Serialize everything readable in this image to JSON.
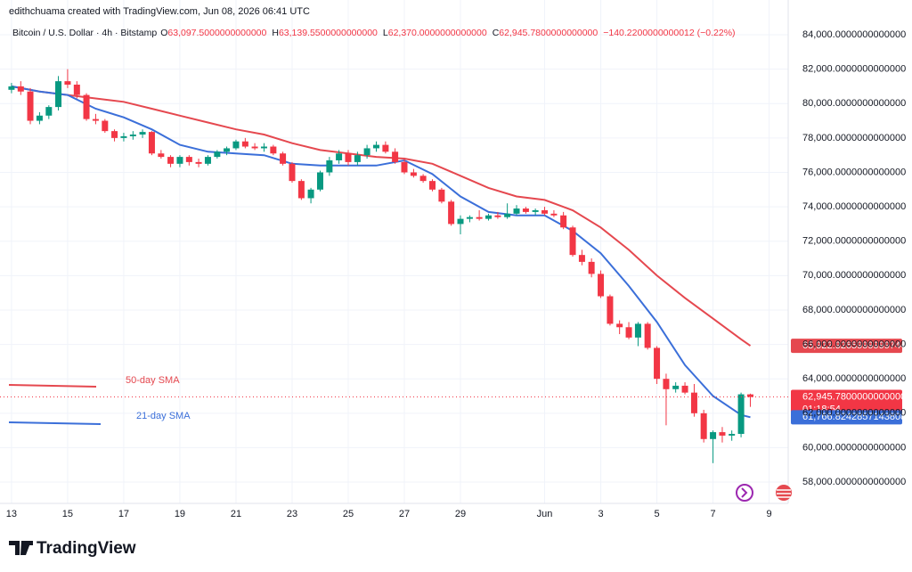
{
  "attribution": "edithchuama created with TradingView.com, Jun 08, 2026 06:41 UTC",
  "chart_data": {
    "type": "candlestick",
    "title": "Bitcoin / U.S. Dollar · 4h · Bitstamp",
    "ohlc_legend": [
      {
        "label": "O",
        "value": "63,097.5000000000000"
      },
      {
        "label": "H",
        "value": "63,139.5500000000000"
      },
      {
        "label": "L",
        "value": "62,370.0000000000000"
      },
      {
        "label": "C",
        "value": "62,945.7800000000000"
      }
    ],
    "change": "−140.2200000000012 (−0.22%)",
    "x": [
      0,
      0.33,
      0.67,
      1,
      1.33,
      1.67,
      2,
      2.33,
      2.67,
      3,
      3.33,
      3.67,
      4,
      4.33,
      4.67,
      5,
      5.33,
      5.67,
      6,
      6.33,
      6.67,
      7,
      7.33,
      7.67,
      8,
      8.33,
      8.67,
      9,
      9.33,
      9.67,
      10,
      10.33,
      10.67,
      11,
      11.33,
      11.67,
      12,
      12.33,
      12.67,
      13,
      13.33,
      13.67,
      14,
      14.33,
      14.67,
      15,
      15.33,
      15.67,
      16,
      16.33,
      16.67,
      17,
      17.33,
      17.67,
      18,
      18.33,
      18.67,
      19,
      19.33,
      19.67,
      20,
      20.33,
      20.67,
      21,
      21.33,
      21.67,
      22,
      22.33,
      22.67,
      23,
      23.33,
      23.67,
      24,
      24.33,
      24.67,
      25,
      25.33,
      25.67,
      26,
      26.33
    ],
    "open": [
      80800,
      81000,
      80700,
      79000,
      79300,
      79800,
      81300,
      81100,
      80500,
      79100,
      79000,
      78400,
      78000,
      78100,
      78200,
      78350,
      77100,
      76900,
      76500,
      76900,
      76600,
      76500,
      76900,
      77200,
      77400,
      77800,
      77500,
      77400,
      77500,
      77100,
      76500,
      75500,
      74500,
      75000,
      76000,
      76700,
      77100,
      76600,
      77000,
      77400,
      77600,
      77200,
      76600,
      76000,
      75800,
      75500,
      75000,
      74300,
      73000,
      73300,
      73400,
      73300,
      73500,
      73400,
      73600,
      73900,
      73700,
      73800,
      73600,
      73500,
      72800,
      71200,
      70800,
      70100,
      68800,
      67200,
      67000,
      66400,
      67200,
      65800,
      64000,
      63400,
      63600,
      63200,
      62000,
      60500,
      60900,
      60700,
      60800,
      63097.5
    ],
    "high": [
      81200,
      81300,
      80900,
      79500,
      79900,
      81600,
      82000,
      81300,
      80600,
      79400,
      79100,
      78500,
      78300,
      78400,
      78500,
      78400,
      77300,
      77000,
      77000,
      77000,
      76800,
      77000,
      77300,
      77500,
      77900,
      78000,
      77700,
      77700,
      77600,
      77200,
      76600,
      75600,
      75100,
      76100,
      76900,
      77300,
      77300,
      77200,
      77600,
      77800,
      77800,
      77400,
      76800,
      76200,
      75900,
      75600,
      75100,
      74400,
      73500,
      73500,
      73800,
      73600,
      73700,
      74200,
      74100,
      74000,
      73900,
      74000,
      73800,
      73700,
      72900,
      71500,
      71000,
      70300,
      68900,
      67400,
      67300,
      67300,
      67300,
      65900,
      64300,
      63800,
      63800,
      63700,
      62200,
      61000,
      61200,
      61000,
      63200,
      63139.55
    ],
    "low": [
      80600,
      80500,
      78800,
      78800,
      79100,
      79600,
      80900,
      80300,
      79000,
      78800,
      78300,
      77800,
      77800,
      77900,
      78000,
      77000,
      76800,
      76300,
      76300,
      76400,
      76300,
      76400,
      76800,
      77000,
      77300,
      77400,
      77300,
      77200,
      77000,
      76400,
      75400,
      74400,
      74200,
      74900,
      75800,
      76500,
      76400,
      76400,
      76800,
      77200,
      77100,
      76500,
      75900,
      75700,
      75400,
      74900,
      74200,
      72900,
      72400,
      73100,
      73200,
      73200,
      73300,
      73300,
      73500,
      73600,
      73500,
      73500,
      73400,
      72700,
      71100,
      70600,
      69900,
      68700,
      67100,
      66600,
      66300,
      65900,
      65700,
      63700,
      61300,
      63200,
      63100,
      61800,
      60300,
      59100,
      60300,
      60400,
      60600,
      62370
    ],
    "close": [
      81000,
      80700,
      79000,
      79300,
      79800,
      81300,
      81100,
      80500,
      79100,
      79000,
      78400,
      78000,
      78100,
      78200,
      78350,
      77100,
      76900,
      76500,
      76900,
      76600,
      76500,
      76900,
      77200,
      77400,
      77800,
      77500,
      77400,
      77500,
      77100,
      76500,
      75500,
      74500,
      75000,
      76000,
      76700,
      77100,
      76600,
      77000,
      77400,
      77600,
      77200,
      76600,
      76000,
      75800,
      75500,
      75000,
      74300,
      73000,
      73300,
      73400,
      73300,
      73500,
      73400,
      73600,
      73900,
      73700,
      73800,
      73600,
      73500,
      72800,
      71200,
      70800,
      70100,
      68800,
      67200,
      67000,
      66400,
      67200,
      65800,
      64000,
      63400,
      63600,
      63200,
      62000,
      60500,
      60900,
      60700,
      60800,
      63100,
      62945.78
    ],
    "up_color": "#089981",
    "down_color": "#f23645",
    "series": [
      {
        "name": "50-day SMA",
        "color": "#e5484f",
        "x": [
          0,
          1,
          2,
          3,
          4,
          5,
          6,
          7,
          8,
          9,
          10,
          11,
          12,
          13,
          14,
          15,
          16,
          17,
          18,
          19,
          20,
          21,
          22,
          23,
          24,
          25,
          26,
          26.33
        ],
        "values": [
          81000,
          80700,
          80500,
          80300,
          80100,
          79700,
          79300,
          78900,
          78500,
          78200,
          77700,
          77300,
          77100,
          76900,
          76800,
          76500,
          75800,
          75100,
          74600,
          74400,
          73800,
          72800,
          71500,
          70000,
          68700,
          67500,
          66300,
          65922.92659999998
        ]
      },
      {
        "name": "21-day SMA",
        "color": "#3b6fd9",
        "x": [
          0,
          1,
          2,
          3,
          4,
          5,
          6,
          7,
          8,
          9,
          10,
          11,
          12,
          13,
          14,
          15,
          16,
          17,
          18,
          19,
          20,
          21,
          22,
          23,
          24,
          25,
          26,
          26.33
        ],
        "values": [
          81000,
          80700,
          80500,
          79700,
          79200,
          78500,
          77600,
          77200,
          77100,
          77000,
          76500,
          76400,
          76400,
          76400,
          76700,
          75900,
          74600,
          73700,
          73500,
          73500,
          72600,
          71300,
          69400,
          67300,
          64800,
          63000,
          61900,
          61766.82428571438
        ]
      }
    ],
    "xlim": [
      -0.41,
      27.68
    ],
    "xticks": [
      {
        "value": 0,
        "label": "13"
      },
      {
        "value": 2,
        "label": "15"
      },
      {
        "value": 4,
        "label": "17"
      },
      {
        "value": 6,
        "label": "19"
      },
      {
        "value": 8,
        "label": "21"
      },
      {
        "value": 10,
        "label": "23"
      },
      {
        "value": 12,
        "label": "25"
      },
      {
        "value": 14,
        "label": "27"
      },
      {
        "value": 16,
        "label": "29"
      },
      {
        "value": 19,
        "label": "Jun"
      },
      {
        "value": 21,
        "label": "3"
      },
      {
        "value": 23,
        "label": "5"
      },
      {
        "value": 25,
        "label": "7"
      },
      {
        "value": 27,
        "label": "9"
      }
    ],
    "ylim": [
      56760,
      86020
    ],
    "yticks": [
      {
        "value": 58000,
        "label": "58,000.0000000000000"
      },
      {
        "value": 60000,
        "label": "60,000.0000000000000"
      },
      {
        "value": 62000,
        "label": "62,000.0000000000000"
      },
      {
        "value": 64000,
        "label": "64,000.0000000000000"
      },
      {
        "value": 66000,
        "label": "66,000.0000000000000"
      },
      {
        "value": 68000,
        "label": "68,000.0000000000000"
      },
      {
        "value": 70000,
        "label": "70,000.0000000000000"
      },
      {
        "value": 72000,
        "label": "72,000.0000000000000"
      },
      {
        "value": 74000,
        "label": "74,000.0000000000000"
      },
      {
        "value": 76000,
        "label": "76,000.0000000000000"
      },
      {
        "value": 78000,
        "label": "78,000.0000000000000"
      },
      {
        "value": 80000,
        "label": "80,000.0000000000000"
      },
      {
        "value": 82000,
        "label": "82,000.0000000000000"
      },
      {
        "value": 84000,
        "label": "84,000.0000000000000"
      }
    ],
    "grid": true,
    "price_tags": [
      {
        "value": 65922.92659999998,
        "label": "65,922.9265999999744",
        "color": "#e5484f"
      },
      {
        "value": 62945.78,
        "label": "62,945.7800000000000",
        "color": "#f23645",
        "countdown": "01:18:54"
      },
      {
        "value": 61766.82428571438,
        "label": "61,766.8242857143808",
        "color": "#3b6fd9"
      }
    ]
  },
  "footer": {
    "logo": "TradingView"
  }
}
